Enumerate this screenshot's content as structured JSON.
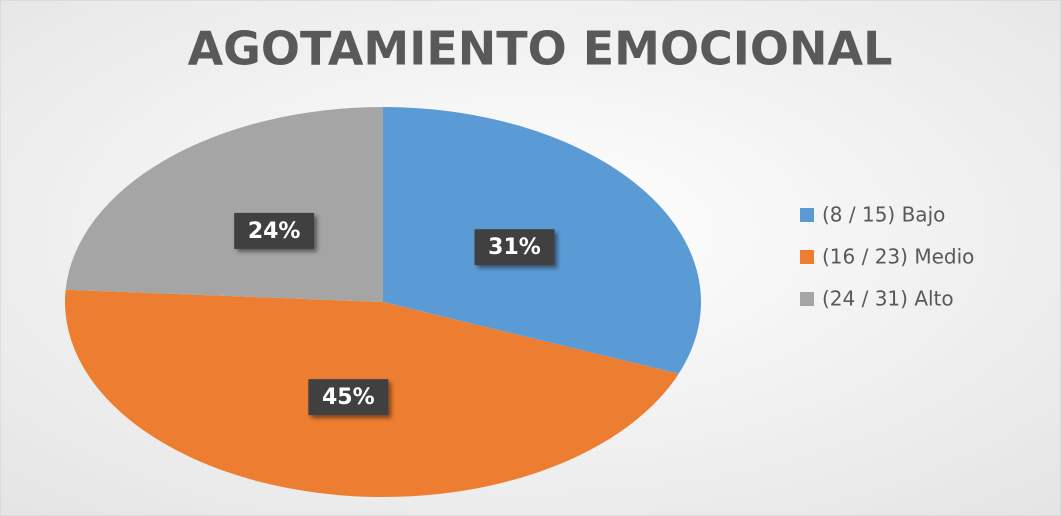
{
  "chart_data": {
    "type": "pie",
    "title": "AGOTAMIENTO EMOCIONAL",
    "categories": [
      "(8 / 15) Bajo",
      "(16 / 23) Medio",
      "(24 / 31) Alto"
    ],
    "values": [
      31,
      45,
      24
    ],
    "value_labels": [
      "31%",
      "45%",
      "24%"
    ],
    "colors": [
      "#5b9bd5",
      "#ed7d31",
      "#a5a5a5"
    ],
    "legend": "right"
  }
}
